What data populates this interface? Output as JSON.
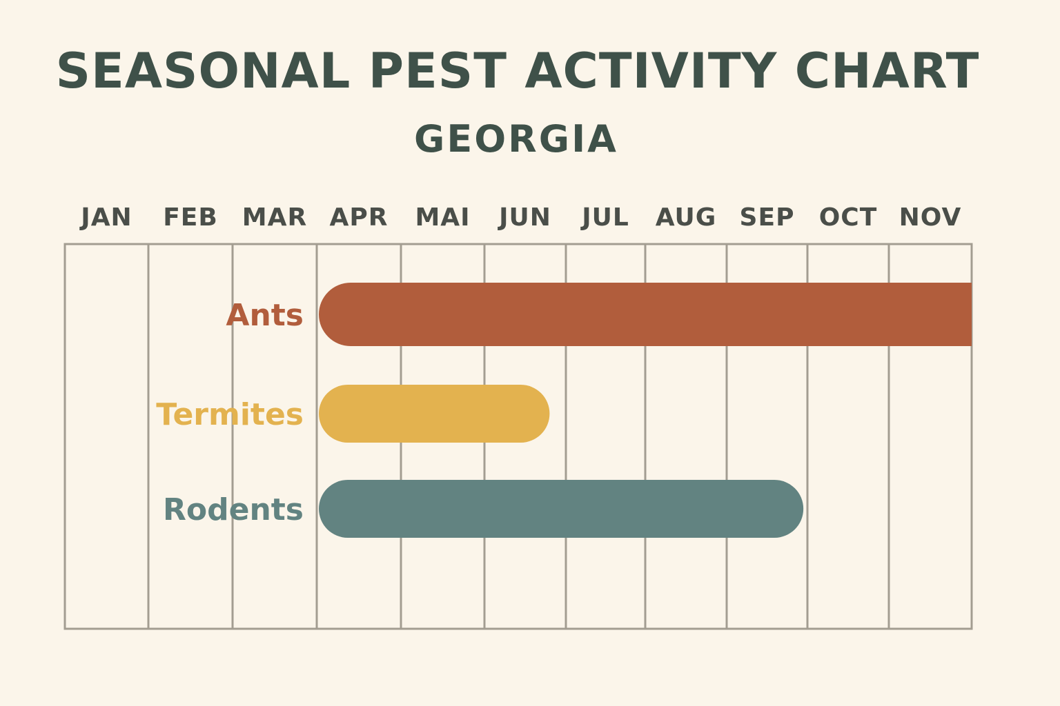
{
  "title": "SEASONAL PEST ACTIVITY CHART",
  "subtitle": "GEORGIA",
  "colors": {
    "background": "#fbf5ea",
    "grid": "#a39d91",
    "text": "#3f5149"
  },
  "chart_data": {
    "type": "gantt",
    "title": "SEASONAL PEST ACTIVITY CHART",
    "subtitle": "GEORGIA",
    "months": [
      "JAN",
      "FEB",
      "MAR",
      "APR",
      "MAI",
      "JUN",
      "JUL",
      "AUG",
      "SEP",
      "OCT",
      "NOV"
    ],
    "series": [
      {
        "name": "Ants",
        "start_month": "APR",
        "end_month": "NOV",
        "start": 3,
        "end": 11,
        "color": "#b15d3c"
      },
      {
        "name": "Termites",
        "start_month": "APR",
        "end_month": "JUN",
        "start": 3,
        "end": 5.8,
        "color": "#e3b24f"
      },
      {
        "name": "Rodents",
        "start_month": "APR",
        "end_month": "SEP",
        "start": 3,
        "end": 8.95,
        "color": "#628381"
      }
    ],
    "grid": true
  }
}
